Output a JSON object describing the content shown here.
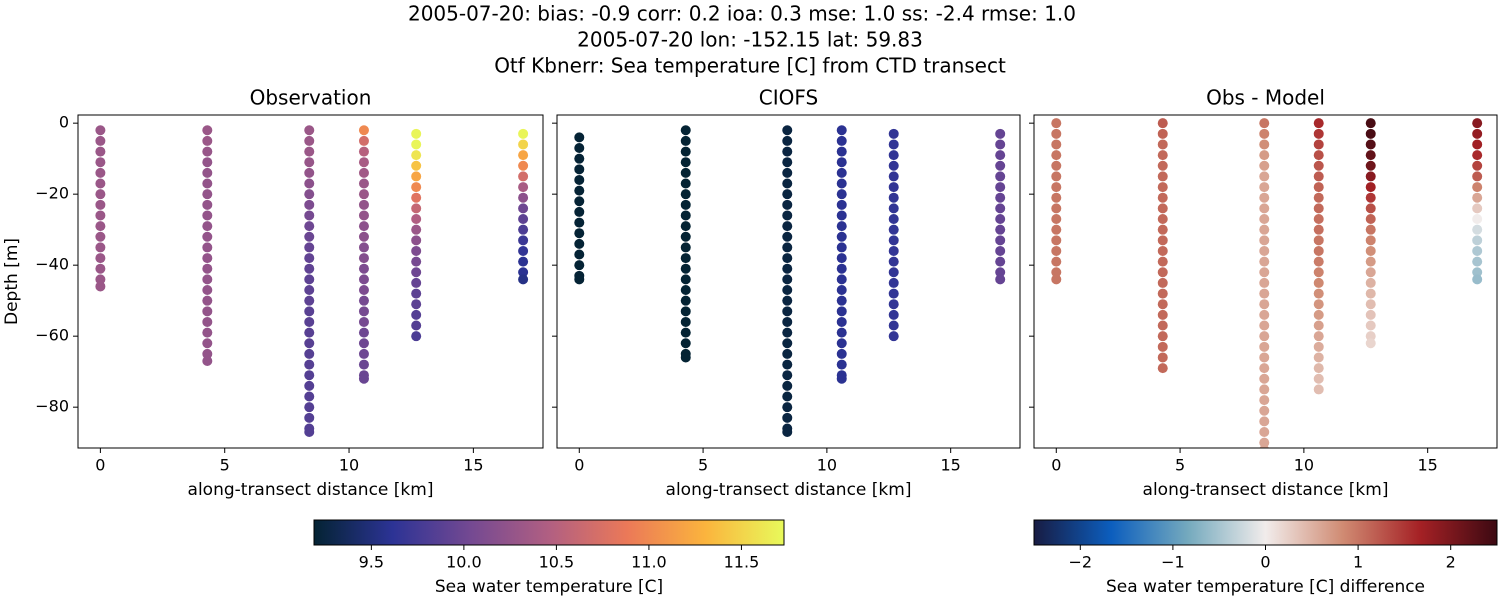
{
  "suptitle": [
    "2005-07-20: bias: -0.9  corr: 0.2  ioa: 0.3  mse: 1.0  ss: -2.4  rmse: 1.0",
    "2005-07-20 lon: -152.15 lat: 59.83",
    "Otf Kbnerr: Sea temperature [C] from CTD transect"
  ],
  "chart_data": [
    {
      "type": "scatter",
      "title": "Observation",
      "xlabel": "along-transect distance [km]",
      "ylabel": "Depth [m]",
      "colorbar": 0,
      "xlim": [
        -0.9,
        17.8
      ],
      "ylim": [
        -91.5,
        2.3
      ],
      "xticks": [
        0,
        5,
        10,
        15
      ],
      "yticks": [
        0,
        {
          "value": -20,
          "label": "−20"
        },
        {
          "value": -40,
          "label": "−40"
        },
        {
          "value": -60,
          "label": "−60"
        },
        {
          "value": -80,
          "label": "−80"
        }
      ],
      "ytick_labels": true,
      "profiles": [
        {
          "x": 0,
          "depth": [
            -2,
            -5,
            -8,
            -11,
            -14,
            -17,
            -20,
            -23,
            -26,
            -29,
            -32,
            -35,
            -38,
            -41,
            -44,
            -46
          ],
          "values": [
            10.3,
            10.3,
            10.3,
            10.3,
            10.3,
            10.3,
            10.3,
            10.3,
            10.3,
            10.3,
            10.3,
            10.3,
            10.3,
            10.3,
            10.3,
            10.3
          ]
        },
        {
          "x": 4.3,
          "depth": [
            -2,
            -5,
            -8,
            -11,
            -14,
            -17,
            -20,
            -23,
            -26,
            -29,
            -32,
            -35,
            -38,
            -41,
            -44,
            -47,
            -50,
            -53,
            -56,
            -59,
            -62,
            -65,
            -67
          ],
          "values": [
            10.3,
            10.3,
            10.28,
            10.25,
            10.25,
            10.25,
            10.25,
            10.25,
            10.25,
            10.25,
            10.25,
            10.25,
            10.25,
            10.25,
            10.25,
            10.25,
            10.25,
            10.25,
            10.25,
            10.25,
            10.25,
            10.25,
            10.25
          ]
        },
        {
          "x": 8.4,
          "depth": [
            -2,
            -5,
            -8,
            -11,
            -14,
            -17,
            -20,
            -23,
            -26,
            -29,
            -32,
            -35,
            -38,
            -41,
            -44,
            -47,
            -50,
            -53,
            -56,
            -59,
            -62,
            -65,
            -68,
            -71,
            -74,
            -77,
            -80,
            -83,
            -86,
            -87
          ],
          "values": [
            10.3,
            10.3,
            10.3,
            10.28,
            10.25,
            10.2,
            10.15,
            10.1,
            10.05,
            10.0,
            9.98,
            9.95,
            9.93,
            9.92,
            9.9,
            9.9,
            9.9,
            9.88,
            9.88,
            9.87,
            9.87,
            9.86,
            9.86,
            9.85,
            9.85,
            9.85,
            9.85,
            9.84,
            9.84,
            9.84
          ]
        },
        {
          "x": 10.6,
          "depth": [
            -2,
            -5,
            -8,
            -11,
            -14,
            -17,
            -20,
            -23,
            -26,
            -29,
            -32,
            -35,
            -38,
            -41,
            -44,
            -47,
            -50,
            -53,
            -56,
            -59,
            -62,
            -65,
            -68,
            -71,
            -72
          ],
          "values": [
            11.0,
            10.7,
            10.5,
            10.4,
            10.35,
            10.3,
            10.3,
            10.25,
            10.25,
            10.2,
            10.2,
            10.15,
            10.15,
            10.1,
            10.1,
            10.1,
            10.05,
            10.05,
            10.05,
            10.0,
            10.0,
            10.0,
            9.98,
            9.98,
            9.97
          ]
        },
        {
          "x": 12.7,
          "depth": [
            -3,
            -6,
            -9,
            -12,
            -15,
            -18,
            -21,
            -24,
            -27,
            -30,
            -33,
            -36,
            -39,
            -42,
            -45,
            -48,
            -51,
            -54,
            -57,
            -60
          ],
          "values": [
            11.7,
            11.7,
            11.6,
            11.4,
            11.2,
            11.0,
            10.8,
            10.6,
            10.45,
            10.3,
            10.2,
            10.1,
            10.05,
            10.0,
            9.95,
            9.9,
            9.9,
            9.85,
            9.85,
            9.8
          ]
        },
        {
          "x": 17.0,
          "depth": [
            -3,
            -6,
            -9,
            -12,
            -15,
            -18,
            -21,
            -24,
            -27,
            -30,
            -33,
            -36,
            -39,
            -42,
            -44
          ],
          "values": [
            11.7,
            11.5,
            11.2,
            11.0,
            10.7,
            10.4,
            10.2,
            10.0,
            9.9,
            9.8,
            9.7,
            9.65,
            9.6,
            9.6,
            9.55
          ]
        }
      ]
    },
    {
      "type": "scatter",
      "title": "CIOFS",
      "xlabel": "along-transect distance [km]",
      "colorbar": 0,
      "xlim": [
        -0.9,
        17.8
      ],
      "ylim": [
        -91.5,
        2.3
      ],
      "xticks": [
        0,
        5,
        10,
        15
      ],
      "yticks": [
        0,
        -20,
        -40,
        -60,
        -80
      ],
      "ytick_labels": false,
      "profiles": [
        {
          "x": 0,
          "depth": [
            -4,
            -7,
            -10,
            -13,
            -16,
            -19,
            -22,
            -25,
            -28,
            -31,
            -34,
            -37,
            -40,
            -43,
            -44
          ],
          "values": [
            9.2,
            9.2,
            9.2,
            9.2,
            9.2,
            9.2,
            9.2,
            9.2,
            9.2,
            9.2,
            9.2,
            9.2,
            9.2,
            9.2,
            9.2
          ]
        },
        {
          "x": 4.3,
          "depth": [
            -2,
            -5,
            -8,
            -11,
            -14,
            -17,
            -20,
            -23,
            -26,
            -29,
            -32,
            -35,
            -38,
            -41,
            -44,
            -47,
            -50,
            -53,
            -56,
            -59,
            -62,
            -65,
            -66
          ],
          "values": [
            9.15,
            9.15,
            9.15,
            9.15,
            9.15,
            9.15,
            9.15,
            9.15,
            9.15,
            9.15,
            9.15,
            9.15,
            9.15,
            9.15,
            9.15,
            9.15,
            9.15,
            9.15,
            9.15,
            9.15,
            9.15,
            9.15,
            9.15
          ]
        },
        {
          "x": 8.4,
          "depth": [
            -2,
            -5,
            -8,
            -11,
            -14,
            -17,
            -20,
            -23,
            -26,
            -29,
            -32,
            -35,
            -38,
            -41,
            -44,
            -47,
            -50,
            -53,
            -56,
            -59,
            -62,
            -65,
            -68,
            -71,
            -74,
            -77,
            -80,
            -83,
            -86,
            -87
          ],
          "values": [
            9.25,
            9.25,
            9.25,
            9.25,
            9.25,
            9.25,
            9.25,
            9.25,
            9.25,
            9.25,
            9.25,
            9.25,
            9.25,
            9.25,
            9.25,
            9.25,
            9.25,
            9.25,
            9.25,
            9.25,
            9.25,
            9.25,
            9.25,
            9.25,
            9.25,
            9.25,
            9.25,
            9.25,
            9.25,
            9.25
          ]
        },
        {
          "x": 10.6,
          "depth": [
            -2,
            -5,
            -8,
            -11,
            -14,
            -17,
            -20,
            -23,
            -26,
            -29,
            -32,
            -35,
            -38,
            -41,
            -44,
            -47,
            -50,
            -53,
            -56,
            -59,
            -62,
            -65,
            -68,
            -71,
            -72
          ],
          "values": [
            9.6,
            9.6,
            9.6,
            9.6,
            9.6,
            9.6,
            9.6,
            9.6,
            9.6,
            9.6,
            9.6,
            9.6,
            9.6,
            9.6,
            9.6,
            9.6,
            9.6,
            9.6,
            9.6,
            9.6,
            9.6,
            9.6,
            9.6,
            9.6,
            9.6
          ]
        },
        {
          "x": 12.7,
          "depth": [
            -3,
            -6,
            -9,
            -12,
            -15,
            -18,
            -21,
            -24,
            -27,
            -30,
            -33,
            -36,
            -39,
            -42,
            -45,
            -48,
            -51,
            -54,
            -57,
            -60
          ],
          "values": [
            9.65,
            9.65,
            9.65,
            9.65,
            9.65,
            9.65,
            9.65,
            9.65,
            9.65,
            9.65,
            9.65,
            9.65,
            9.65,
            9.65,
            9.65,
            9.65,
            9.65,
            9.65,
            9.65,
            9.65
          ]
        },
        {
          "x": 17.0,
          "depth": [
            -3,
            -6,
            -9,
            -12,
            -15,
            -18,
            -21,
            -24,
            -27,
            -30,
            -33,
            -36,
            -39,
            -42,
            -44
          ],
          "values": [
            9.95,
            9.95,
            9.95,
            9.95,
            9.95,
            9.95,
            9.95,
            9.95,
            9.95,
            9.95,
            9.95,
            9.95,
            9.95,
            9.95,
            9.95
          ]
        }
      ]
    },
    {
      "type": "scatter",
      "title": "Obs - Model",
      "xlabel": "along-transect distance [km]",
      "colorbar": 1,
      "xlim": [
        -0.9,
        17.8
      ],
      "ylim": [
        -91.5,
        2.3
      ],
      "xticks": [
        0,
        5,
        10,
        15
      ],
      "yticks": [
        0,
        -20,
        -40,
        -60,
        -80
      ],
      "ytick_labels": false,
      "profiles": [
        {
          "x": 0,
          "depth": [
            0,
            -3,
            -6,
            -9,
            -12,
            -15,
            -18,
            -21,
            -24,
            -27,
            -30,
            -33,
            -36,
            -39,
            -42,
            -44
          ],
          "values": [
            1.0,
            1.0,
            1.0,
            1.0,
            1.0,
            1.0,
            1.0,
            1.0,
            1.0,
            1.0,
            1.0,
            1.0,
            1.0,
            1.0,
            1.0,
            1.0
          ]
        },
        {
          "x": 4.3,
          "depth": [
            0,
            -3,
            -6,
            -9,
            -12,
            -15,
            -18,
            -21,
            -24,
            -27,
            -30,
            -33,
            -36,
            -39,
            -42,
            -45,
            -48,
            -51,
            -54,
            -57,
            -60,
            -63,
            -66,
            -69
          ],
          "values": [
            1.2,
            1.15,
            1.1,
            1.1,
            1.1,
            1.1,
            1.1,
            1.1,
            1.1,
            1.1,
            1.1,
            1.1,
            1.1,
            1.1,
            1.1,
            1.1,
            1.1,
            1.1,
            1.1,
            1.1,
            1.1,
            1.1,
            1.1,
            1.1
          ]
        },
        {
          "x": 8.4,
          "depth": [
            0,
            -3,
            -6,
            -9,
            -12,
            -15,
            -18,
            -21,
            -24,
            -27,
            -30,
            -33,
            -36,
            -39,
            -42,
            -45,
            -48,
            -51,
            -54,
            -57,
            -60,
            -63,
            -66,
            -69,
            -72,
            -75,
            -78,
            -81,
            -84,
            -87,
            -90,
            -92
          ],
          "values": [
            1.0,
            0.9,
            0.8,
            0.7,
            0.65,
            0.6,
            0.6,
            0.6,
            0.6,
            0.6,
            0.6,
            0.6,
            0.6,
            0.6,
            0.6,
            0.6,
            0.6,
            0.6,
            0.6,
            0.6,
            0.6,
            0.6,
            0.6,
            0.6,
            0.6,
            0.6,
            0.6,
            0.6,
            0.6,
            0.6,
            0.6,
            0.6
          ]
        },
        {
          "x": 10.6,
          "depth": [
            0,
            -3,
            -6,
            -9,
            -12,
            -15,
            -18,
            -21,
            -24,
            -27,
            -30,
            -33,
            -36,
            -39,
            -42,
            -45,
            -48,
            -51,
            -54,
            -57,
            -60,
            -63,
            -66,
            -69,
            -72,
            -75
          ],
          "values": [
            1.6,
            1.5,
            1.4,
            1.3,
            1.25,
            1.2,
            1.15,
            1.1,
            1.1,
            1.05,
            1.05,
            1.0,
            1.0,
            0.95,
            0.9,
            0.85,
            0.8,
            0.75,
            0.7,
            0.65,
            0.6,
            0.55,
            0.5,
            0.45,
            0.4,
            0.4
          ]
        },
        {
          "x": 12.7,
          "depth": [
            0,
            -3,
            -6,
            -9,
            -12,
            -15,
            -18,
            -21,
            -24,
            -27,
            -30,
            -33,
            -36,
            -39,
            -42,
            -45,
            -48,
            -51,
            -54,
            -57,
            -60,
            -62
          ],
          "values": [
            2.4,
            2.4,
            2.3,
            2.2,
            2.1,
            1.9,
            1.7,
            1.5,
            1.3,
            1.15,
            1.0,
            0.9,
            0.8,
            0.7,
            0.6,
            0.5,
            0.45,
            0.4,
            0.35,
            0.3,
            0.25,
            0.2
          ]
        },
        {
          "x": 17.0,
          "depth": [
            0,
            -3,
            -6,
            -9,
            -12,
            -15,
            -18,
            -21,
            -24,
            -27,
            -30,
            -33,
            -36,
            -39,
            -42,
            -44
          ],
          "values": [
            1.9,
            1.8,
            1.7,
            1.6,
            1.4,
            1.2,
            0.9,
            0.6,
            0.3,
            0.0,
            -0.2,
            -0.35,
            -0.45,
            -0.5,
            -0.55,
            -0.6
          ]
        }
      ]
    }
  ],
  "colorbars": [
    {
      "label": "Sea water temperature [C]",
      "clim": [
        9.19,
        11.73
      ],
      "colormap": [
        "#042333",
        "#2c3395",
        "#744992",
        "#b15f82",
        "#eb7958",
        "#fbb43d",
        "#e8fa5b"
      ],
      "ticks": [
        9.5,
        {
          "value": 10.0,
          "label": "10.0"
        },
        10.5,
        {
          "value": 11.0,
          "label": "11.0"
        },
        11.5
      ]
    },
    {
      "label": "Sea water temperature [C] difference",
      "clim": [
        -2.5,
        2.5
      ],
      "colormap": [
        "#181c43",
        "#0c5ebe",
        "#75aabe",
        "#f1eceb",
        "#d08b73",
        "#a52125",
        "#3c0912"
      ],
      "ticks": [
        {
          "value": -2,
          "label": "−2"
        },
        {
          "value": -1,
          "label": "−1"
        },
        0,
        1,
        2
      ]
    }
  ]
}
